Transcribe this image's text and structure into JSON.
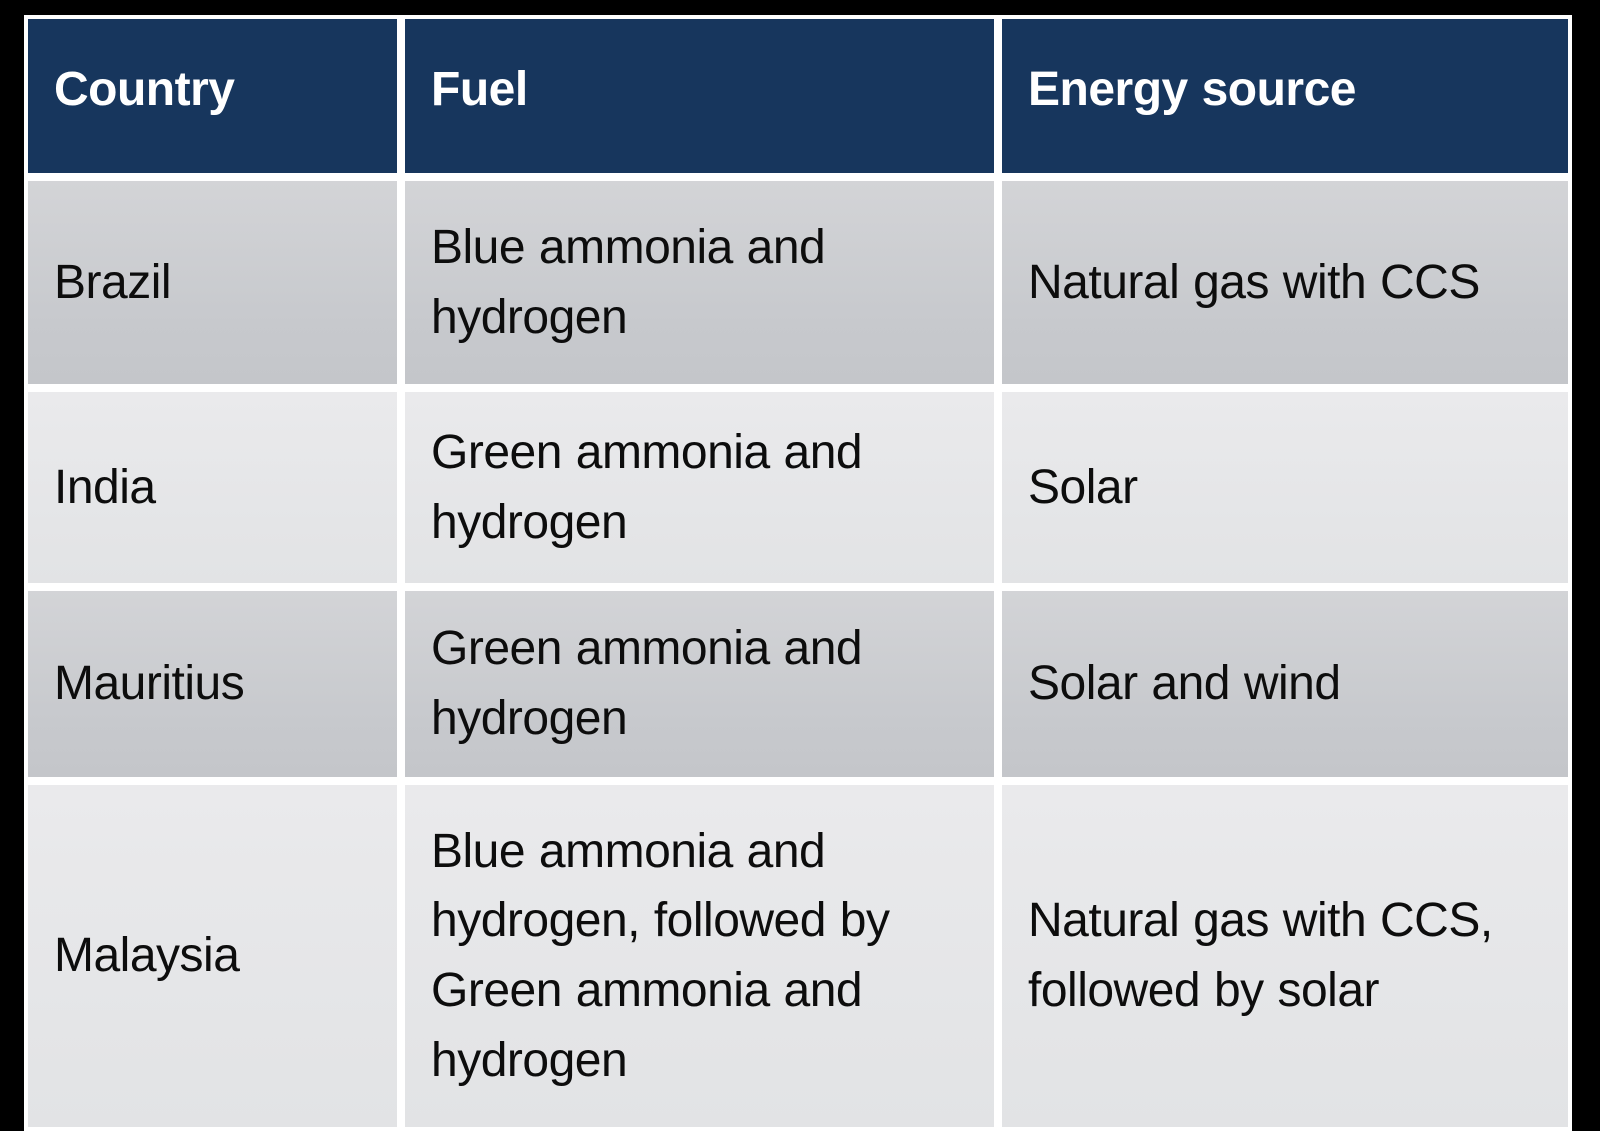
{
  "table": {
    "columns": [
      {
        "label": "Country"
      },
      {
        "label": "Fuel"
      },
      {
        "label": "Energy source"
      }
    ],
    "rows": [
      {
        "country": "Brazil",
        "fuel": "Blue ammonia and hydrogen",
        "energy_source": "Natural gas with CCS",
        "shade": "dark"
      },
      {
        "country": "India",
        "fuel": "Green ammonia and hydrogen",
        "energy_source": "Solar",
        "shade": "light"
      },
      {
        "country": "Mauritius",
        "fuel": "Green ammonia and hydrogen",
        "energy_source": "Solar and wind",
        "shade": "dark"
      },
      {
        "country": "Malaysia",
        "fuel": "Blue ammonia and hydrogen, followed by Green ammonia and hydrogen",
        "energy_source": "Natural gas with CCS, followed by solar",
        "shade": "light"
      }
    ],
    "colors": {
      "header_bg": "#17365D",
      "header_text": "#FFFFFF",
      "row_dark": "#C8CACE",
      "row_light": "#E5E6E8",
      "divider": "#FFFFFF",
      "page_bg": "#000000",
      "body_text": "#0D0D0D"
    }
  },
  "chart_data": {
    "type": "table",
    "columns": [
      "Country",
      "Fuel",
      "Energy source"
    ],
    "rows": [
      [
        "Brazil",
        "Blue ammonia and hydrogen",
        "Natural gas with CCS"
      ],
      [
        "India",
        "Green ammonia and hydrogen",
        "Solar"
      ],
      [
        "Mauritius",
        "Green ammonia and hydrogen",
        "Solar and wind"
      ],
      [
        "Malaysia",
        "Blue ammonia and hydrogen, followed by Green ammonia and hydrogen",
        "Natural gas with CCS, followed by solar"
      ]
    ]
  }
}
